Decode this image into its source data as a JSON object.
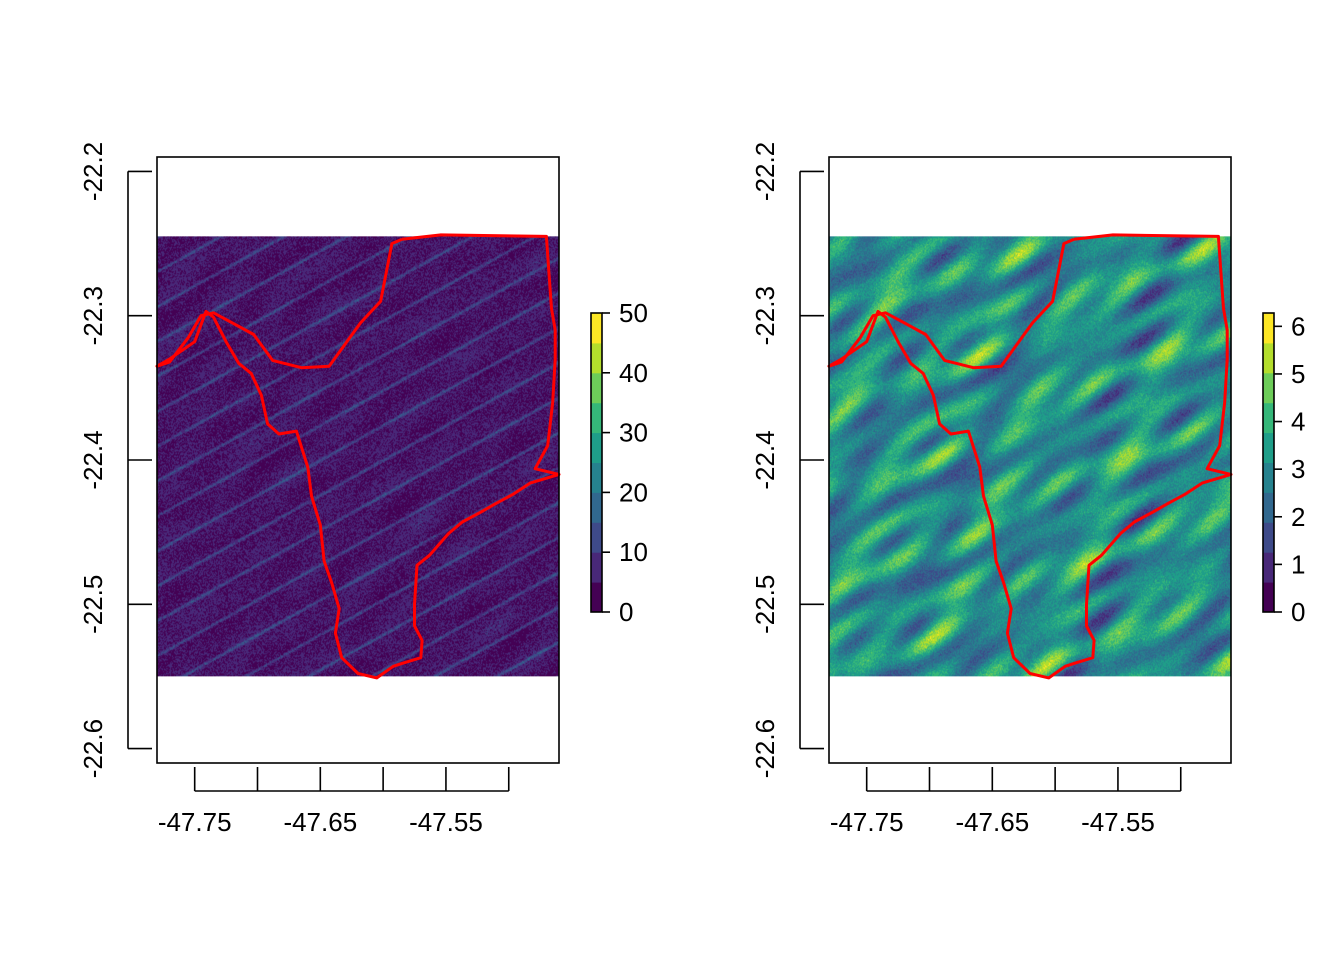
{
  "chart_data": [
    {
      "type": "heatmap",
      "title": "",
      "xlabel": "",
      "ylabel": "",
      "xlim": [
        -47.78,
        -47.46
      ],
      "ylim": [
        -22.61,
        -22.19
      ],
      "raster_extent": {
        "x": [
          -47.78,
          -47.46
        ],
        "y": [
          -22.55,
          -22.245
        ]
      },
      "x_ticks": [
        -47.75,
        -47.7,
        -47.65,
        -47.6,
        -47.55,
        -47.5
      ],
      "x_tick_labels": [
        "-47.75",
        "",
        "-47.65",
        "",
        "-47.55",
        ""
      ],
      "y_ticks": [
        -22.2,
        -22.3,
        -22.4,
        -22.5,
        -22.6
      ],
      "y_tick_labels": [
        "-22.2",
        "-22.3",
        "-22.4",
        "-22.5",
        "-22.6"
      ],
      "colorbar": {
        "min": 0,
        "max": 50,
        "ticks": [
          0,
          10,
          20,
          30,
          40,
          50
        ],
        "tick_labels": [
          "0",
          "10",
          "20",
          "30",
          "40",
          "50"
        ]
      },
      "palette": [
        "#440154",
        "#482878",
        "#3E4A89",
        "#31688E",
        "#26828E",
        "#1F9E89",
        "#35B779",
        "#6DCD59",
        "#B4DE2C",
        "#FDE725"
      ],
      "texture": {
        "base": 0.1,
        "amp": 0.06,
        "ridge_weight": 0.16,
        "ridge_band": 1.0,
        "seed": 7
      },
      "boundary_color": "#FF0000",
      "boundary": [
        [
          -47.585,
          -22.247
        ],
        [
          -47.554,
          -22.244
        ],
        [
          -47.47,
          -22.245
        ],
        [
          -47.468,
          -22.27
        ],
        [
          -47.466,
          -22.295
        ],
        [
          -47.463,
          -22.31
        ],
        [
          -47.463,
          -22.33
        ],
        [
          -47.465,
          -22.36
        ],
        [
          -47.469,
          -22.39
        ],
        [
          -47.479,
          -22.406
        ],
        [
          -47.46,
          -22.41
        ],
        [
          -47.483,
          -22.416
        ],
        [
          -47.497,
          -22.424
        ],
        [
          -47.51,
          -22.43
        ],
        [
          -47.522,
          -22.436
        ],
        [
          -47.537,
          -22.443
        ],
        [
          -47.548,
          -22.451
        ],
        [
          -47.563,
          -22.466
        ],
        [
          -47.573,
          -22.473
        ],
        [
          -47.575,
          -22.5
        ],
        [
          -47.575,
          -22.515
        ],
        [
          -47.569,
          -22.525
        ],
        [
          -47.57,
          -22.537
        ],
        [
          -47.585,
          -22.541
        ],
        [
          -47.592,
          -22.543
        ],
        [
          -47.605,
          -22.551
        ],
        [
          -47.62,
          -22.548
        ],
        [
          -47.633,
          -22.537
        ],
        [
          -47.638,
          -22.52
        ],
        [
          -47.635,
          -22.503
        ],
        [
          -47.641,
          -22.485
        ],
        [
          -47.647,
          -22.47
        ],
        [
          -47.65,
          -22.445
        ],
        [
          -47.657,
          -22.425
        ],
        [
          -47.66,
          -22.405
        ],
        [
          -47.669,
          -22.38
        ],
        [
          -47.683,
          -22.382
        ],
        [
          -47.692,
          -22.375
        ],
        [
          -47.697,
          -22.355
        ],
        [
          -47.705,
          -22.34
        ],
        [
          -47.715,
          -22.333
        ],
        [
          -47.725,
          -22.318
        ],
        [
          -47.735,
          -22.301
        ],
        [
          -47.741,
          -22.297
        ],
        [
          -47.75,
          -22.318
        ],
        [
          -47.77,
          -22.33
        ],
        [
          -47.78,
          -22.335
        ],
        [
          -47.77,
          -22.332
        ],
        [
          -47.755,
          -22.315
        ],
        [
          -47.745,
          -22.3
        ],
        [
          -47.735,
          -22.298
        ],
        [
          -47.72,
          -22.305
        ],
        [
          -47.703,
          -22.313
        ],
        [
          -47.688,
          -22.331
        ],
        [
          -47.665,
          -22.336
        ],
        [
          -47.643,
          -22.335
        ],
        [
          -47.618,
          -22.305
        ],
        [
          -47.602,
          -22.29
        ],
        [
          -47.593,
          -22.25
        ],
        [
          -47.585,
          -22.247
        ]
      ]
    },
    {
      "type": "heatmap",
      "title": "",
      "xlabel": "",
      "ylabel": "",
      "xlim": [
        -47.78,
        -47.46
      ],
      "ylim": [
        -22.61,
        -22.19
      ],
      "raster_extent": {
        "x": [
          -47.78,
          -47.46
        ],
        "y": [
          -22.55,
          -22.245
        ]
      },
      "x_ticks": [
        -47.75,
        -47.7,
        -47.65,
        -47.6,
        -47.55,
        -47.5
      ],
      "x_tick_labels": [
        "-47.75",
        "",
        "-47.65",
        "",
        "-47.55",
        ""
      ],
      "y_ticks": [
        -22.2,
        -22.3,
        -22.4,
        -22.5,
        -22.6
      ],
      "y_tick_labels": [
        "-22.2",
        "-22.3",
        "-22.4",
        "-22.5",
        "-22.6"
      ],
      "colorbar": {
        "min": 0,
        "max": 6.28,
        "ticks": [
          0,
          1,
          2,
          3,
          4,
          5,
          6
        ],
        "tick_labels": [
          "0",
          "1",
          "2",
          "3",
          "4",
          "5",
          "6"
        ]
      },
      "palette": [
        "#440154",
        "#482878",
        "#3E4A89",
        "#31688E",
        "#26828E",
        "#1F9E89",
        "#35B779",
        "#6DCD59",
        "#B4DE2C",
        "#FDE725"
      ],
      "texture": {
        "base": 0.5,
        "amp": 0.45,
        "ridge_weight": 0.0,
        "ridge_band": 0.0,
        "seed": 13
      },
      "boundary_color": "#FF0000",
      "boundary": [
        [
          -47.585,
          -22.247
        ],
        [
          -47.554,
          -22.244
        ],
        [
          -47.47,
          -22.245
        ],
        [
          -47.468,
          -22.27
        ],
        [
          -47.466,
          -22.295
        ],
        [
          -47.463,
          -22.31
        ],
        [
          -47.463,
          -22.33
        ],
        [
          -47.465,
          -22.36
        ],
        [
          -47.469,
          -22.39
        ],
        [
          -47.479,
          -22.406
        ],
        [
          -47.46,
          -22.41
        ],
        [
          -47.483,
          -22.416
        ],
        [
          -47.497,
          -22.424
        ],
        [
          -47.51,
          -22.43
        ],
        [
          -47.522,
          -22.436
        ],
        [
          -47.537,
          -22.443
        ],
        [
          -47.548,
          -22.451
        ],
        [
          -47.563,
          -22.466
        ],
        [
          -47.573,
          -22.473
        ],
        [
          -47.575,
          -22.5
        ],
        [
          -47.575,
          -22.515
        ],
        [
          -47.569,
          -22.525
        ],
        [
          -47.57,
          -22.537
        ],
        [
          -47.585,
          -22.541
        ],
        [
          -47.592,
          -22.543
        ],
        [
          -47.605,
          -22.551
        ],
        [
          -47.62,
          -22.548
        ],
        [
          -47.633,
          -22.537
        ],
        [
          -47.638,
          -22.52
        ],
        [
          -47.635,
          -22.503
        ],
        [
          -47.641,
          -22.485
        ],
        [
          -47.647,
          -22.47
        ],
        [
          -47.65,
          -22.445
        ],
        [
          -47.657,
          -22.425
        ],
        [
          -47.66,
          -22.405
        ],
        [
          -47.669,
          -22.38
        ],
        [
          -47.683,
          -22.382
        ],
        [
          -47.692,
          -22.375
        ],
        [
          -47.697,
          -22.355
        ],
        [
          -47.705,
          -22.34
        ],
        [
          -47.715,
          -22.333
        ],
        [
          -47.725,
          -22.318
        ],
        [
          -47.735,
          -22.301
        ],
        [
          -47.741,
          -22.297
        ],
        [
          -47.75,
          -22.318
        ],
        [
          -47.77,
          -22.33
        ],
        [
          -47.78,
          -22.335
        ],
        [
          -47.77,
          -22.332
        ],
        [
          -47.755,
          -22.315
        ],
        [
          -47.745,
          -22.3
        ],
        [
          -47.735,
          -22.298
        ],
        [
          -47.72,
          -22.305
        ],
        [
          -47.703,
          -22.313
        ],
        [
          -47.688,
          -22.331
        ],
        [
          -47.665,
          -22.336
        ],
        [
          -47.643,
          -22.335
        ],
        [
          -47.618,
          -22.305
        ],
        [
          -47.602,
          -22.29
        ],
        [
          -47.593,
          -22.25
        ],
        [
          -47.585,
          -22.247
        ]
      ]
    }
  ]
}
